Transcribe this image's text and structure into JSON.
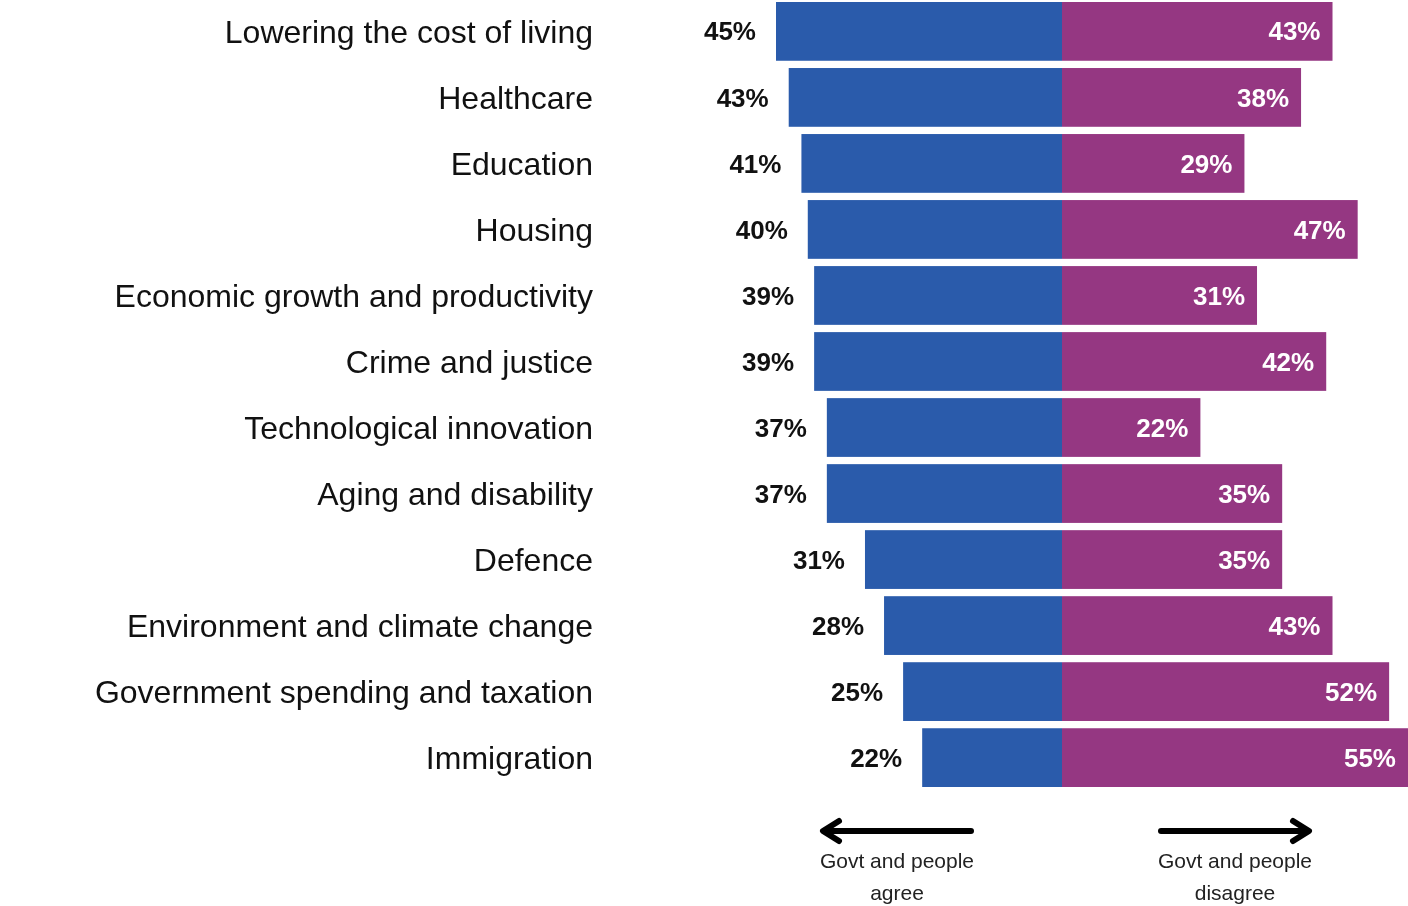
{
  "chart_data": [
    {
      "type": "bar",
      "orientation": "horizontal",
      "xlim": [
        45,
        0
      ],
      "categories": [
        "Lowering the cost of living",
        "Healthcare",
        "Education",
        "Housing",
        "Economic growth and productivity",
        "Crime and justice",
        "Technological innovation",
        "Aging and disability",
        "Defence",
        "Environment and climate change",
        "Government spending and taxation",
        "Immigration"
      ],
      "series": [
        {
          "color": "#2a5bab",
          "values": [
            45,
            43,
            41,
            40,
            39,
            39,
            37,
            37,
            31,
            28,
            25,
            22
          ],
          "value_labels": [
            "45%",
            "43%",
            "41%",
            "40%",
            "39%",
            "39%",
            "37%",
            "37%",
            "31%",
            "28%",
            "25%",
            "22%"
          ]
        }
      ],
      "annotations": [
        "Govt and people agree"
      ]
    },
    {
      "type": "bar",
      "orientation": "horizontal",
      "xlim": [
        0,
        55
      ],
      "categories": [
        null,
        null,
        null,
        null,
        null,
        null,
        null,
        null,
        null,
        null,
        null,
        null
      ],
      "series": [
        {
          "color": "#953782",
          "values": [
            43,
            38,
            29,
            47,
            31,
            42,
            22,
            35,
            35,
            43,
            52,
            55
          ],
          "value_labels": [
            "43%",
            "38%",
            "29%",
            "47%",
            "31%",
            "42%",
            "22%",
            "35%",
            "35%",
            "43%",
            "52%",
            "55%"
          ]
        }
      ],
      "annotations": [
        "Govt and people disagree"
      ]
    }
  ]
}
